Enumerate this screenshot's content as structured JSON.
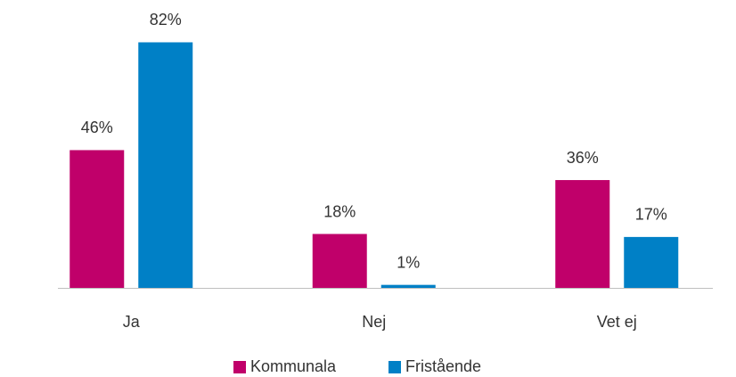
{
  "chart_data": {
    "type": "bar",
    "categories": [
      "Ja",
      "Nej",
      "Vet ej"
    ],
    "series": [
      {
        "name": "Kommunala",
        "color": "#c0006a",
        "values": [
          46,
          18,
          36
        ],
        "value_labels": [
          "46%",
          "18%",
          "36%"
        ]
      },
      {
        "name": "Fristående",
        "color": "#0080c6",
        "values": [
          82,
          1,
          17
        ],
        "value_labels": [
          "82%",
          "1%",
          "17%"
        ]
      }
    ]
  }
}
